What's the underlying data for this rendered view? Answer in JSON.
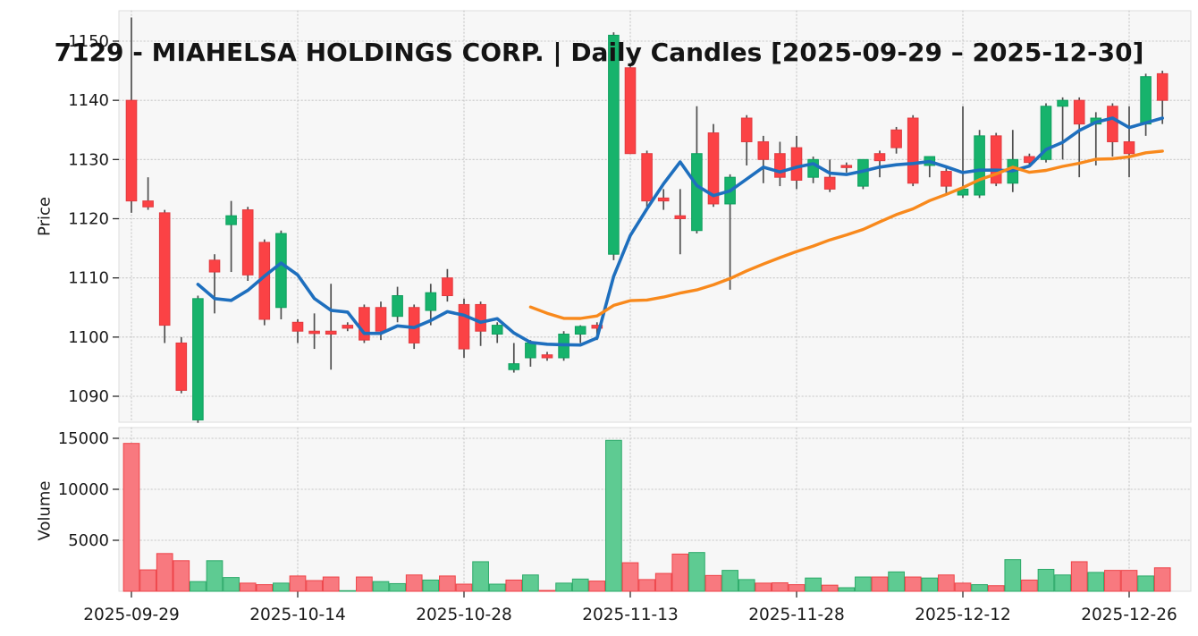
{
  "chart_data": {
    "type": "candlestick",
    "title": "7129 - MIAHELSA HOLDINGS CORP. | Daily Candles [2025-09-29 – 2025-12-30]",
    "price_axis": {
      "label": "Price",
      "ticks": [
        1090,
        1100,
        1110,
        1120,
        1130,
        1140,
        1150
      ],
      "range": [
        1085.3,
        1155.2
      ]
    },
    "volume_axis": {
      "label": "Volume",
      "ticks": [
        5000,
        10000,
        15000
      ],
      "range": [
        0,
        16000
      ]
    },
    "x_axis": {
      "tick_labels": [
        "2025-09-29",
        "2025-10-14",
        "2025-10-28",
        "2025-11-13",
        "2025-11-28",
        "2025-12-12",
        "2025-12-26"
      ],
      "tick_indices": [
        0,
        10,
        20,
        30,
        40,
        50,
        60
      ],
      "num_candles": 63
    },
    "overlays": [
      {
        "name": "ma-fast",
        "window": 5,
        "color": "#1e6fbe",
        "width": 3.6
      },
      {
        "name": "ma-slow",
        "window": 25,
        "color": "#f8891c",
        "width": 3.4
      }
    ],
    "columns": [
      "open",
      "high",
      "low",
      "close",
      "volume"
    ],
    "candles": [
      [
        1140,
        1154,
        1121,
        1123,
        14500
      ],
      [
        1123,
        1127,
        1121.5,
        1122,
        2100
      ],
      [
        1121,
        1121.5,
        1099,
        1102,
        3700
      ],
      [
        1099,
        1100,
        1090.5,
        1091,
        3000
      ],
      [
        1086,
        1107,
        1085.5,
        1106.5,
        950
      ],
      [
        1113,
        1114,
        1104,
        1111,
        3000
      ],
      [
        1119,
        1123,
        1111,
        1120.5,
        1350
      ],
      [
        1121.5,
        1122,
        1109.5,
        1110.5,
        800
      ],
      [
        1116,
        1116.5,
        1102,
        1103,
        650
      ],
      [
        1105,
        1118,
        1103,
        1117.5,
        800
      ],
      [
        1102.5,
        1103,
        1099,
        1101,
        1500
      ],
      [
        1101,
        1104,
        1098,
        1100.6,
        1050
      ],
      [
        1101,
        1109,
        1094.5,
        1100.5,
        1400
      ],
      [
        1102,
        1102.5,
        1101,
        1101.5,
        60
      ],
      [
        1105,
        1105.5,
        1099,
        1099.5,
        1400
      ],
      [
        1105,
        1106,
        1099.5,
        1101,
        950
      ],
      [
        1103.5,
        1108.5,
        1102.5,
        1107,
        750
      ],
      [
        1105,
        1105.5,
        1098,
        1099,
        1600
      ],
      [
        1104.5,
        1109,
        1102,
        1107.5,
        1100
      ],
      [
        1110,
        1111.5,
        1106,
        1107,
        1500
      ],
      [
        1105.5,
        1106.5,
        1096.5,
        1098,
        700
      ],
      [
        1105.5,
        1106,
        1098.5,
        1101,
        2900
      ],
      [
        1100.5,
        1102.5,
        1099,
        1102,
        700
      ],
      [
        1094.5,
        1099,
        1094,
        1095.5,
        1100
      ],
      [
        1096.5,
        1099.5,
        1095,
        1099,
        1600
      ],
      [
        1097,
        1097.5,
        1096,
        1096.5,
        80
      ],
      [
        1096.5,
        1101,
        1096,
        1100.5,
        800
      ],
      [
        1100.5,
        1102,
        1099,
        1101.8,
        1200
      ],
      [
        1102,
        1102.5,
        1099.5,
        1101.5,
        1000
      ],
      [
        1114,
        1151.5,
        1113,
        1151,
        14800
      ],
      [
        1145.5,
        1146,
        1131,
        1131,
        2800
      ],
      [
        1131,
        1131.5,
        1122,
        1123,
        1150
      ],
      [
        1123.5,
        1125,
        1121.5,
        1123,
        1750
      ],
      [
        1120.5,
        1125,
        1114,
        1120,
        3650
      ],
      [
        1118,
        1139,
        1117.5,
        1131,
        3800
      ],
      [
        1134.5,
        1136,
        1122,
        1122.5,
        1550
      ],
      [
        1122.5,
        1127.5,
        1108,
        1127,
        2050
      ],
      [
        1137,
        1137.5,
        1129,
        1133,
        1150
      ],
      [
        1133,
        1134,
        1126,
        1130,
        800
      ],
      [
        1131,
        1133,
        1125.5,
        1127,
        830
      ],
      [
        1132,
        1134,
        1125,
        1126.5,
        650
      ],
      [
        1127,
        1130.5,
        1126,
        1130,
        1300
      ],
      [
        1127,
        1130,
        1124.5,
        1125,
        600
      ],
      [
        1129,
        1129.5,
        1127.8,
        1128.8,
        350
      ],
      [
        1125.5,
        1130,
        1125,
        1130,
        1400
      ],
      [
        1131,
        1131.5,
        1127,
        1129.8,
        1400
      ],
      [
        1135,
        1135.5,
        1131,
        1132,
        1900
      ],
      [
        1137,
        1137.5,
        1125.5,
        1126,
        1400
      ],
      [
        1129,
        1130.5,
        1127,
        1130.5,
        1300
      ],
      [
        1128,
        1128.5,
        1124,
        1125.5,
        1600
      ],
      [
        1124,
        1139,
        1123.5,
        1125,
        800
      ],
      [
        1124,
        1135,
        1123.5,
        1134,
        650
      ],
      [
        1134,
        1134.5,
        1125.5,
        1126,
        550
      ],
      [
        1126,
        1135,
        1124.5,
        1130,
        3100
      ],
      [
        1130.5,
        1131,
        1129,
        1129.5,
        1100
      ],
      [
        1130,
        1139.5,
        1129.5,
        1139,
        2150
      ],
      [
        1139,
        1140.5,
        1130,
        1140,
        1600
      ],
      [
        1140,
        1140.5,
        1127,
        1136,
        2900
      ],
      [
        1136,
        1138,
        1129,
        1137,
        1850
      ],
      [
        1139,
        1139.5,
        1130.5,
        1133,
        2050
      ],
      [
        1133,
        1139,
        1127,
        1131,
        2050
      ],
      [
        1136,
        1144.5,
        1134,
        1144,
        1500
      ],
      [
        1144.5,
        1145,
        1136,
        1140,
        2300
      ]
    ],
    "colors": {
      "up": "#17b36c",
      "up_border": "#0e9e5d",
      "down": "#fb4245",
      "down_border": "#e23a3f",
      "vol_up": "#5ecb92",
      "vol_up_border": "#2aa968",
      "vol_down": "#f8797f",
      "vol_down_border": "#ee4348",
      "ma_fast": "#1e6fbe",
      "ma_slow": "#f8891c",
      "wick": "#4f4f4f",
      "grid": "#c7c7c7",
      "panel_bg": "#f7f7f7",
      "panel_border": "#dedede",
      "text": "#1a1a1a"
    }
  }
}
